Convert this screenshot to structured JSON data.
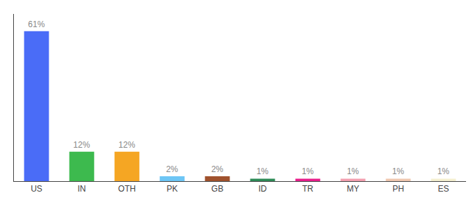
{
  "chart_data": {
    "type": "bar",
    "categories": [
      "US",
      "IN",
      "OTH",
      "PK",
      "GB",
      "ID",
      "TR",
      "MY",
      "PH",
      "ES"
    ],
    "values": [
      61,
      12,
      12,
      2,
      2,
      1,
      1,
      1,
      1,
      1
    ],
    "value_labels": [
      "61%",
      "12%",
      "12%",
      "2%",
      "2%",
      "1%",
      "1%",
      "1%",
      "1%",
      "1%"
    ],
    "colors": [
      "#4a6cf7",
      "#3dba4e",
      "#f5a623",
      "#6ec6f5",
      "#a0522d",
      "#2e8b57",
      "#e91e8c",
      "#f4a0b0",
      "#f0c8b0",
      "#f5f0d0"
    ],
    "ylim": [
      0,
      68
    ],
    "data_labels": true,
    "tick_labels": "x",
    "grid": false
  }
}
